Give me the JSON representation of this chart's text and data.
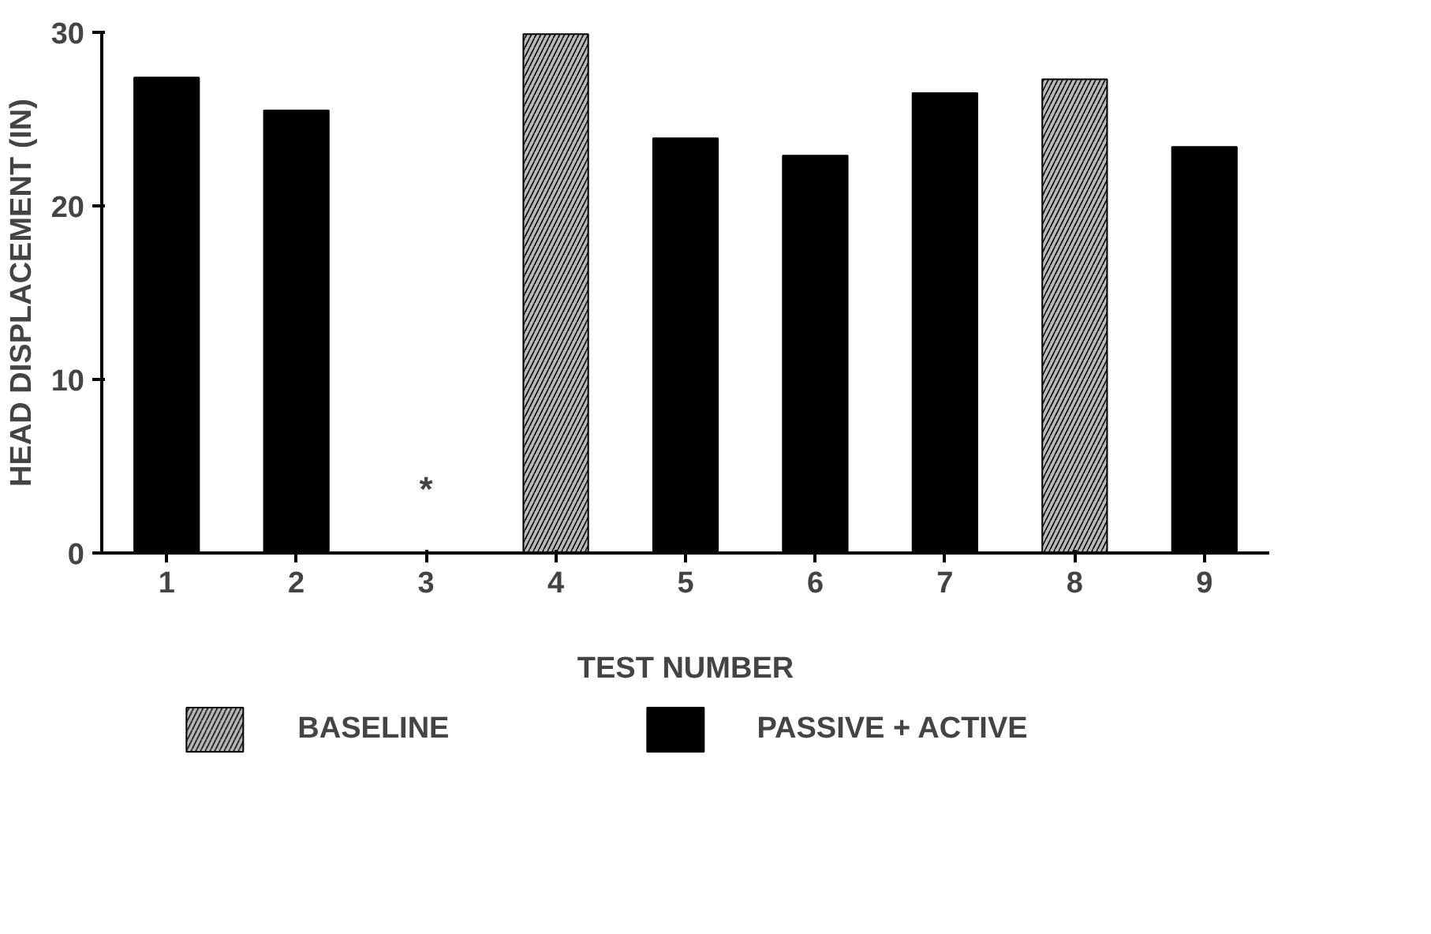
{
  "chart_data": {
    "type": "bar",
    "xlabel": "TEST NUMBER",
    "ylabel": "HEAD DISPLACEMENT (IN)",
    "categories": [
      "1",
      "2",
      "3",
      "4",
      "5",
      "6",
      "7",
      "8",
      "9"
    ],
    "series": [
      {
        "name": "BASELINE",
        "color": "#b8b8b8",
        "values": [
          null,
          null,
          null,
          29.9,
          null,
          null,
          null,
          27.3,
          null
        ]
      },
      {
        "name": "PASSIVE + ACTIVE",
        "color": "#000000",
        "values": [
          27.4,
          25.5,
          null,
          null,
          23.9,
          22.9,
          26.5,
          null,
          23.4
        ]
      }
    ],
    "annotations": [
      "*"
    ],
    "ylim": [
      0,
      30
    ],
    "yticks": [
      0,
      10,
      20,
      30
    ],
    "grid": false,
    "legend": "bottom"
  }
}
